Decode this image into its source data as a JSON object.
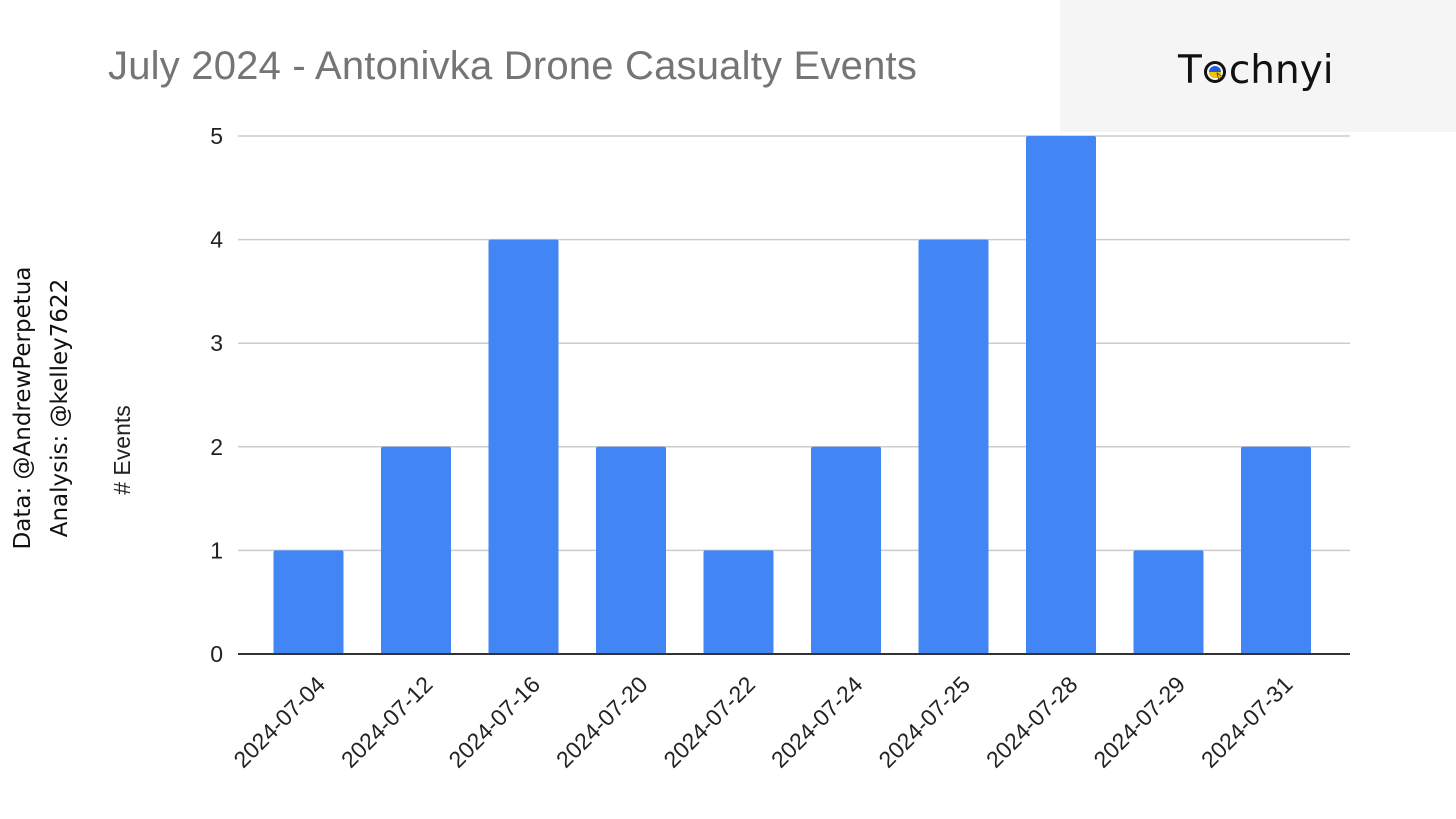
{
  "chart_data": {
    "type": "bar",
    "title": "July 2024 - Antonivka Drone Casualty Events",
    "xlabel": "",
    "ylabel": "# Events",
    "categories": [
      "2024-07-04",
      "2024-07-12",
      "2024-07-16",
      "2024-07-20",
      "2024-07-22",
      "2024-07-24",
      "2024-07-25",
      "2024-07-28",
      "2024-07-29",
      "2024-07-31"
    ],
    "values": [
      1,
      2,
      4,
      2,
      1,
      2,
      4,
      5,
      1,
      2
    ],
    "ylim": [
      0,
      5
    ],
    "yticks": [
      "0",
      "1",
      "2",
      "3",
      "4",
      "5"
    ],
    "grid": true,
    "legend": "none",
    "bar_color": "#4285f4"
  },
  "logo": {
    "text_before": "T",
    "text_after": "chnyi",
    "icon": "ukraine-flag-e-icon"
  },
  "credits": {
    "data_line": "Data: @AndrewPerpetua",
    "analysis_line": "Analysis: @kelley7622"
  },
  "colors": {
    "gridline": "#cccccc",
    "axis": "#333333",
    "logo_panel": "#f6f5f6",
    "flag_blue": "#1f5bd8",
    "flag_yellow": "#f5c400"
  }
}
